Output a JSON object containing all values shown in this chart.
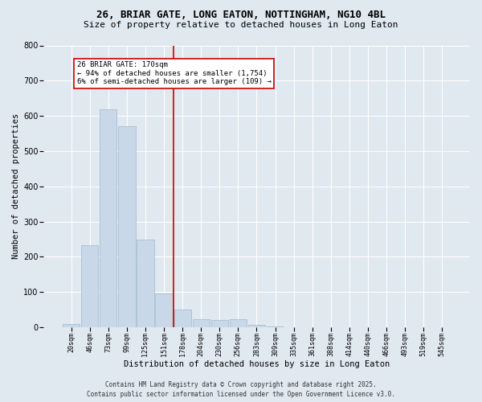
{
  "title_line1": "26, BRIAR GATE, LONG EATON, NOTTINGHAM, NG10 4BL",
  "title_line2": "Size of property relative to detached houses in Long Eaton",
  "xlabel": "Distribution of detached houses by size in Long Eaton",
  "ylabel": "Number of detached properties",
  "bar_labels": [
    "20sqm",
    "46sqm",
    "73sqm",
    "99sqm",
    "125sqm",
    "151sqm",
    "178sqm",
    "204sqm",
    "230sqm",
    "256sqm",
    "283sqm",
    "309sqm",
    "335sqm",
    "361sqm",
    "388sqm",
    "414sqm",
    "440sqm",
    "466sqm",
    "493sqm",
    "519sqm",
    "545sqm"
  ],
  "bar_values": [
    10,
    232,
    619,
    570,
    250,
    97,
    50,
    22,
    21,
    22,
    7,
    2,
    0,
    0,
    0,
    0,
    0,
    0,
    0,
    0,
    0
  ],
  "bar_color": "#c8d8e8",
  "bar_edgecolor": "#a0b8d0",
  "vline_x": 5.5,
  "vline_color": "#cc0000",
  "annotation_text": "26 BRIAR GATE: 170sqm\n← 94% of detached houses are smaller (1,754)\n6% of semi-detached houses are larger (109) →",
  "annotation_box_color": "#ffffff",
  "annotation_box_edgecolor": "#cc0000",
  "ylim": [
    0,
    800
  ],
  "yticks": [
    0,
    100,
    200,
    300,
    400,
    500,
    600,
    700,
    800
  ],
  "footer_line1": "Contains HM Land Registry data © Crown copyright and database right 2025.",
  "footer_line2": "Contains public sector information licensed under the Open Government Licence v3.0.",
  "bg_color": "#e0e8f0",
  "plot_bg_color": "#e0e8f0",
  "grid_color": "#ffffff",
  "title_fontsize": 9,
  "subtitle_fontsize": 8,
  "ylabel_fontsize": 7.5,
  "xlabel_fontsize": 7.5,
  "ytick_fontsize": 7,
  "xtick_fontsize": 6,
  "annotation_fontsize": 6.5,
  "footer_fontsize": 5.5
}
